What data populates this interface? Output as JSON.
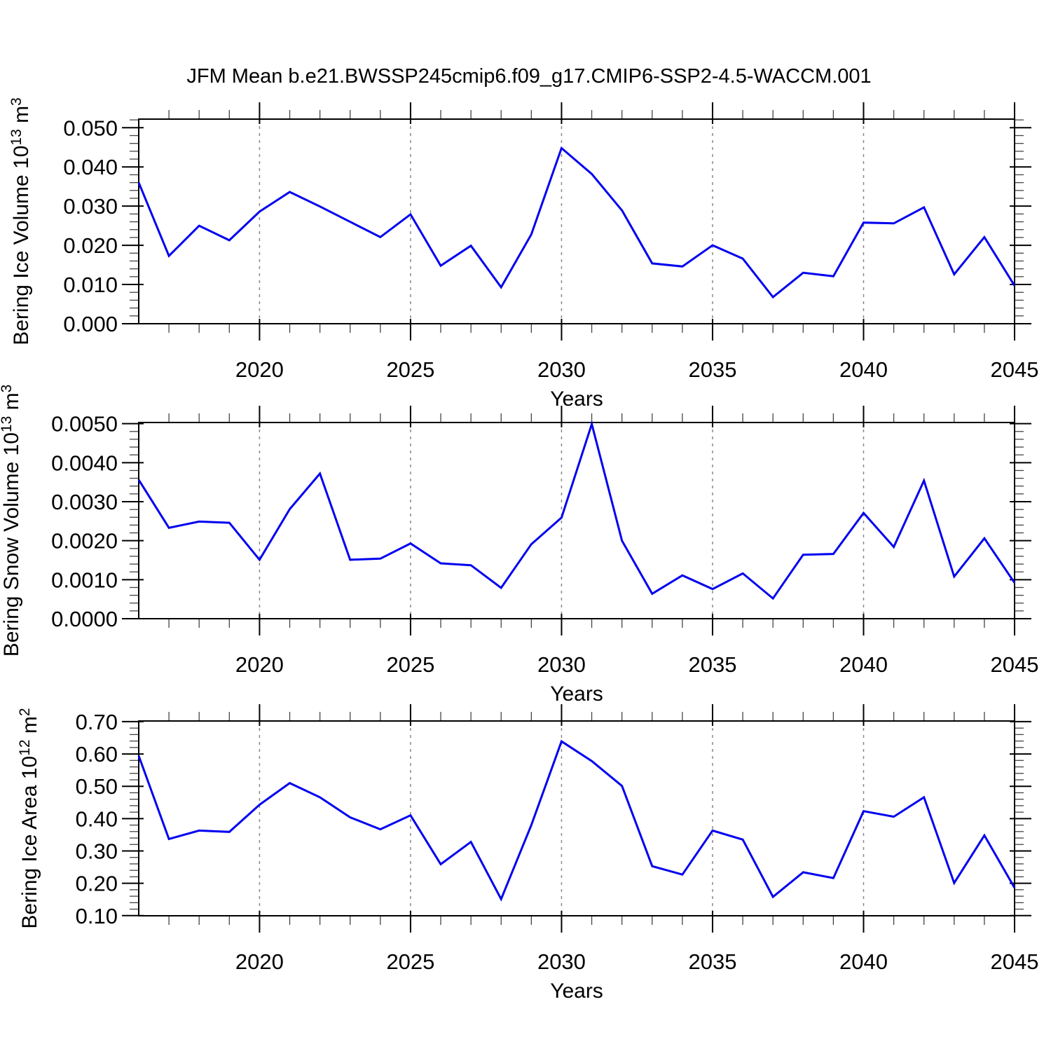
{
  "title": "JFM Mean b.e21.BWSSP245cmip6.f09_g17.CMIP6-SSP2-4.5-WACCM.001",
  "colors": {
    "line": "#0000f0",
    "frame": "#000000",
    "major_tick": "#000000",
    "minor_tick": "#444444",
    "gridline": "#888888",
    "text": "#000000",
    "background": "#ffffff"
  },
  "x_axis": {
    "label": "Years",
    "min": 2016,
    "max": 2045,
    "major_ticks": [
      2020,
      2025,
      2030,
      2035,
      2040,
      2045
    ],
    "major_tick_labels": [
      "2020",
      "2025",
      "2030",
      "2035",
      "2040",
      "2045"
    ],
    "minor_step": 1,
    "gridlines": "dashed at major ticks"
  },
  "chart_data": [
    {
      "type": "line",
      "series_name": "Bering Ice Volume",
      "ylabel_text": "Bering Ice Volume 10^13 m^3",
      "ylabel_parts": [
        [
          "Bering Ice Volume 10",
          false
        ],
        [
          "13",
          true
        ],
        [
          " m",
          false
        ],
        [
          "3",
          true
        ]
      ],
      "xlabel": "Years",
      "ylim": [
        0.0,
        0.0522
      ],
      "y_major_ticks": [
        0.0,
        0.01,
        0.02,
        0.03,
        0.04,
        0.05
      ],
      "y_major_tick_labels": [
        "0.000",
        "0.010",
        "0.020",
        "0.030",
        "0.040",
        "0.050"
      ],
      "y_minor_step": 0.002,
      "x": [
        2016,
        2017,
        2018,
        2019,
        2020,
        2021,
        2022,
        2023,
        2024,
        2025,
        2026,
        2027,
        2028,
        2029,
        2030,
        2031,
        2032,
        2033,
        2034,
        2035,
        2036,
        2037,
        2038,
        2039,
        2040,
        2041,
        2042,
        2043,
        2044,
        2045
      ],
      "values": [
        0.036,
        0.0173,
        0.025,
        0.0213,
        0.0286,
        0.0336,
        0.0299,
        0.026,
        0.0221,
        0.0279,
        0.0148,
        0.0199,
        0.0093,
        0.0228,
        0.0448,
        0.0382,
        0.0289,
        0.0154,
        0.0146,
        0.02,
        0.0166,
        0.0068,
        0.013,
        0.0121,
        0.0258,
        0.0256,
        0.0297,
        0.0126,
        0.0221,
        0.0097
      ]
    },
    {
      "type": "line",
      "series_name": "Bering Snow Volume",
      "ylabel_text": "Bering Snow Volume 10^13 m^3",
      "ylabel_parts": [
        [
          "Bering Snow Volume 10",
          false
        ],
        [
          "13",
          true
        ],
        [
          " m",
          false
        ],
        [
          "3",
          true
        ]
      ],
      "xlabel": "Years",
      "ylim": [
        0.0,
        0.00503
      ],
      "y_major_ticks": [
        0.0,
        0.001,
        0.002,
        0.003,
        0.004,
        0.005
      ],
      "y_major_tick_labels": [
        "0.0000",
        "0.0010",
        "0.0020",
        "0.0030",
        "0.0040",
        "0.0050"
      ],
      "y_minor_step": 0.0002,
      "x": [
        2016,
        2017,
        2018,
        2019,
        2020,
        2021,
        2022,
        2023,
        2024,
        2025,
        2026,
        2027,
        2028,
        2029,
        2030,
        2031,
        2032,
        2033,
        2034,
        2035,
        2036,
        2037,
        2038,
        2039,
        2040,
        2041,
        2042,
        2043,
        2044,
        2045
      ],
      "values": [
        0.00356,
        0.00233,
        0.00249,
        0.00246,
        0.00151,
        0.00281,
        0.00372,
        0.00151,
        0.00154,
        0.00193,
        0.00142,
        0.00137,
        0.00079,
        0.00191,
        0.00259,
        0.00499,
        0.002,
        0.00064,
        0.00111,
        0.00076,
        0.00116,
        0.00052,
        0.00164,
        0.00166,
        0.00271,
        0.00184,
        0.00354,
        0.00108,
        0.00206,
        0.00092
      ]
    },
    {
      "type": "line",
      "series_name": "Bering Ice Area",
      "ylabel_text": "Bering Ice Area 10^12 m^2",
      "ylabel_parts": [
        [
          "Bering Ice Area 10",
          false
        ],
        [
          "12",
          true
        ],
        [
          " m",
          false
        ],
        [
          "2",
          true
        ]
      ],
      "xlabel": "Years",
      "ylim": [
        0.0995,
        0.702
      ],
      "y_major_ticks": [
        0.1,
        0.2,
        0.3,
        0.4,
        0.5,
        0.6,
        0.7
      ],
      "y_major_tick_labels": [
        "0.10",
        "0.20",
        "0.30",
        "0.40",
        "0.50",
        "0.60",
        "0.70"
      ],
      "y_minor_step": 0.02,
      "x": [
        2016,
        2017,
        2018,
        2019,
        2020,
        2021,
        2022,
        2023,
        2024,
        2025,
        2026,
        2027,
        2028,
        2029,
        2030,
        2031,
        2032,
        2033,
        2034,
        2035,
        2036,
        2037,
        2038,
        2039,
        2040,
        2041,
        2042,
        2043,
        2044,
        2045
      ],
      "values": [
        0.594,
        0.337,
        0.363,
        0.359,
        0.443,
        0.51,
        0.466,
        0.404,
        0.367,
        0.41,
        0.259,
        0.328,
        0.151,
        0.38,
        0.639,
        0.578,
        0.501,
        0.253,
        0.227,
        0.363,
        0.335,
        0.158,
        0.234,
        0.216,
        0.423,
        0.406,
        0.466,
        0.201,
        0.348,
        0.186
      ]
    }
  ]
}
